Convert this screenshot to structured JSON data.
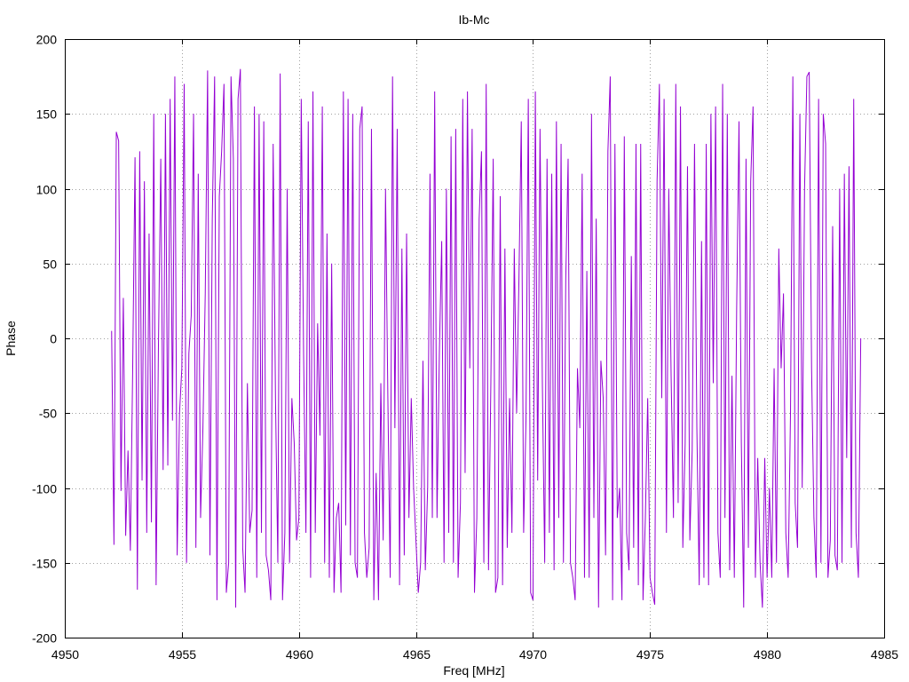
{
  "chart_data": {
    "type": "line",
    "title": "Ib-Mc",
    "xlabel": "Freq [MHz]",
    "ylabel": "Phase",
    "xlim": [
      4950,
      4985
    ],
    "ylim": [
      -200,
      200
    ],
    "xticks": [
      4950,
      4955,
      4960,
      4965,
      4970,
      4975,
      4980,
      4985
    ],
    "yticks": [
      200,
      150,
      100,
      50,
      0,
      -50,
      -100,
      -150,
      -200
    ],
    "grid": true,
    "legend": "none",
    "x": [
      4952,
      4952.1,
      4952.2,
      4952.3,
      4952.4,
      4952.5,
      4952.6,
      4952.7,
      4952.8,
      4952.9,
      4953,
      4953.1,
      4953.2,
      4953.3,
      4953.4,
      4953.5,
      4953.6,
      4953.7,
      4953.8,
      4953.9,
      4954,
      4954.1,
      4954.2,
      4954.3,
      4954.4,
      4954.5,
      4954.6,
      4954.7,
      4954.8,
      4954.9,
      4955,
      4955.1,
      4955.2,
      4955.3,
      4955.4,
      4955.5,
      4955.6,
      4955.7,
      4955.8,
      4955.9,
      4956,
      4956.1,
      4956.2,
      4956.3,
      4956.4,
      4956.5,
      4956.6,
      4956.7,
      4956.8,
      4956.9,
      4957,
      4957.1,
      4957.2,
      4957.3,
      4957.4,
      4957.5,
      4957.6,
      4957.7,
      4957.8,
      4957.9,
      4958,
      4958.1,
      4958.2,
      4958.3,
      4958.4,
      4958.5,
      4958.6,
      4958.7,
      4958.8,
      4958.9,
      4959,
      4959.1,
      4959.2,
      4959.3,
      4959.4,
      4959.5,
      4959.6,
      4959.7,
      4959.8,
      4959.9,
      4960,
      4960.1,
      4960.2,
      4960.3,
      4960.4,
      4960.5,
      4960.6,
      4960.7,
      4960.8,
      4960.9,
      4961,
      4961.1,
      4961.2,
      4961.3,
      4961.4,
      4961.5,
      4961.6,
      4961.7,
      4961.8,
      4961.9,
      4962,
      4962.1,
      4962.2,
      4962.3,
      4962.4,
      4962.5,
      4962.6,
      4962.7,
      4962.8,
      4962.9,
      4963,
      4963.1,
      4963.2,
      4963.3,
      4963.4,
      4963.5,
      4963.6,
      4963.7,
      4963.8,
      4963.9,
      4964,
      4964.1,
      4964.2,
      4964.3,
      4964.4,
      4964.5,
      4964.6,
      4964.7,
      4964.8,
      4964.9,
      4965,
      4965.1,
      4965.2,
      4965.3,
      4965.4,
      4965.5,
      4965.6,
      4965.7,
      4965.8,
      4965.9,
      4966,
      4966.1,
      4966.2,
      4966.3,
      4966.4,
      4966.5,
      4966.6,
      4966.7,
      4966.8,
      4966.9,
      4967,
      4967.1,
      4967.2,
      4967.3,
      4967.4,
      4967.5,
      4967.6,
      4967.7,
      4967.8,
      4967.9,
      4968,
      4968.1,
      4968.2,
      4968.3,
      4968.4,
      4968.5,
      4968.6,
      4968.7,
      4968.8,
      4968.9,
      4969,
      4969.1,
      4969.2,
      4969.3,
      4969.4,
      4969.5,
      4969.6,
      4969.7,
      4969.8,
      4969.9,
      4970,
      4970.1,
      4970.2,
      4970.3,
      4970.4,
      4970.5,
      4970.6,
      4970.7,
      4970.8,
      4970.9,
      4971,
      4971.1,
      4971.2,
      4971.3,
      4971.4,
      4971.5,
      4971.6,
      4971.7,
      4971.8,
      4971.9,
      4972,
      4972.1,
      4972.2,
      4972.3,
      4972.4,
      4972.5,
      4972.6,
      4972.7,
      4972.8,
      4972.9,
      4973,
      4973.1,
      4973.2,
      4973.3,
      4973.4,
      4973.5,
      4973.6,
      4973.7,
      4973.8,
      4973.9,
      4974,
      4974.1,
      4974.2,
      4974.3,
      4974.4,
      4974.5,
      4974.6,
      4974.7,
      4974.8,
      4974.9,
      4975,
      4975.1,
      4975.2,
      4975.3,
      4975.4,
      4975.5,
      4975.6,
      4975.7,
      4975.8,
      4975.9,
      4976,
      4976.1,
      4976.2,
      4976.3,
      4976.4,
      4976.5,
      4976.6,
      4976.7,
      4976.8,
      4976.9,
      4977,
      4977.1,
      4977.2,
      4977.3,
      4977.4,
      4977.5,
      4977.6,
      4977.7,
      4977.8,
      4977.9,
      4978,
      4978.1,
      4978.2,
      4978.3,
      4978.4,
      4978.5,
      4978.6,
      4978.7,
      4978.8,
      4978.9,
      4979,
      4979.1,
      4979.2,
      4979.3,
      4979.4,
      4979.5,
      4979.6,
      4979.7,
      4979.8,
      4979.9,
      4980,
      4980.1,
      4980.2,
      4980.3,
      4980.4,
      4980.5,
      4980.6,
      4980.7,
      4980.8,
      4980.9,
      4981,
      4981.1,
      4981.2,
      4981.3,
      4981.4,
      4981.5,
      4981.6,
      4981.7,
      4981.8,
      4981.9,
      4982,
      4982.1,
      4982.2,
      4982.3,
      4982.4,
      4982.5,
      4982.6,
      4982.7,
      4982.8,
      4982.9,
      4983,
      4983.1,
      4983.2,
      4983.3,
      4983.4,
      4983.5,
      4983.6,
      4983.7,
      4983.8,
      4983.9,
      4984
    ],
    "series": [
      {
        "color": "#9400d3",
        "values": [
          5,
          -138,
          138,
          132,
          -102,
          27,
          -132,
          -75,
          -142,
          -20,
          121,
          -168,
          125,
          -95,
          105,
          -130,
          70,
          -123,
          150,
          -165,
          -5,
          120,
          -88,
          150,
          -85,
          160,
          -55,
          175,
          -145,
          -50,
          -20,
          170,
          -150,
          -10,
          15,
          150,
          -140,
          110,
          -120,
          -60,
          30,
          179,
          -145,
          80,
          175,
          -175,
          95,
          125,
          170,
          -170,
          -150,
          175,
          120,
          -180,
          160,
          180,
          -140,
          -170,
          -30,
          -130,
          -115,
          155,
          -160,
          150,
          -130,
          145,
          -145,
          -155,
          -175,
          130,
          -40,
          -150,
          177,
          -175,
          -130,
          100,
          -150,
          -40,
          -70,
          -135,
          -120,
          160,
          -10,
          -130,
          145,
          -160,
          165,
          -130,
          10,
          -65,
          155,
          -150,
          70,
          -160,
          50,
          -170,
          -120,
          -110,
          -170,
          165,
          -125,
          160,
          -145,
          150,
          -150,
          -160,
          140,
          155,
          -130,
          -160,
          -140,
          140,
          -175,
          -90,
          -175,
          -30,
          -135,
          100,
          -40,
          -160,
          175,
          -60,
          140,
          -165,
          60,
          -145,
          70,
          -120,
          -40,
          -100,
          -135,
          -170,
          -150,
          -15,
          -155,
          -100,
          110,
          -120,
          165,
          -120,
          -10,
          65,
          -150,
          100,
          -130,
          135,
          -150,
          140,
          -160,
          -110,
          160,
          -90,
          165,
          -20,
          140,
          -170,
          -120,
          80,
          125,
          -150,
          170,
          -155,
          -30,
          120,
          -170,
          -160,
          95,
          -165,
          60,
          -140,
          -40,
          -130,
          60,
          -50,
          40,
          145,
          -130,
          -55,
          160,
          -170,
          -175,
          165,
          -95,
          140,
          -30,
          -150,
          120,
          -130,
          110,
          -155,
          145,
          -120,
          130,
          -150,
          40,
          120,
          -150,
          -160,
          -175,
          -20,
          -60,
          110,
          -160,
          45,
          -160,
          150,
          -120,
          80,
          -180,
          -15,
          -40,
          -145,
          125,
          175,
          -175,
          130,
          -120,
          -100,
          -175,
          135,
          -130,
          -155,
          55,
          -140,
          130,
          -165,
          130,
          -175,
          -120,
          -40,
          -160,
          -170,
          -178,
          105,
          170,
          -40,
          160,
          -130,
          100,
          -25,
          -120,
          170,
          -110,
          155,
          -140,
          -70,
          115,
          -135,
          -75,
          130,
          -60,
          -165,
          65,
          -160,
          130,
          -165,
          150,
          -30,
          155,
          -130,
          -160,
          170,
          -120,
          150,
          -155,
          -25,
          -160,
          20,
          145,
          -70,
          -180,
          120,
          -140,
          105,
          155,
          -160,
          -80,
          -150,
          -180,
          -80,
          -160,
          -100,
          -160,
          -20,
          -150,
          60,
          -20,
          30,
          -130,
          -160,
          -50,
          175,
          -110,
          -140,
          150,
          -100,
          100,
          175,
          178,
          -20,
          -120,
          -160,
          160,
          -150,
          150,
          130,
          -160,
          -135,
          75,
          -145,
          -155,
          100,
          -150,
          110,
          -80,
          115,
          -140,
          160,
          -130,
          -160,
          0
        ]
      }
    ]
  }
}
